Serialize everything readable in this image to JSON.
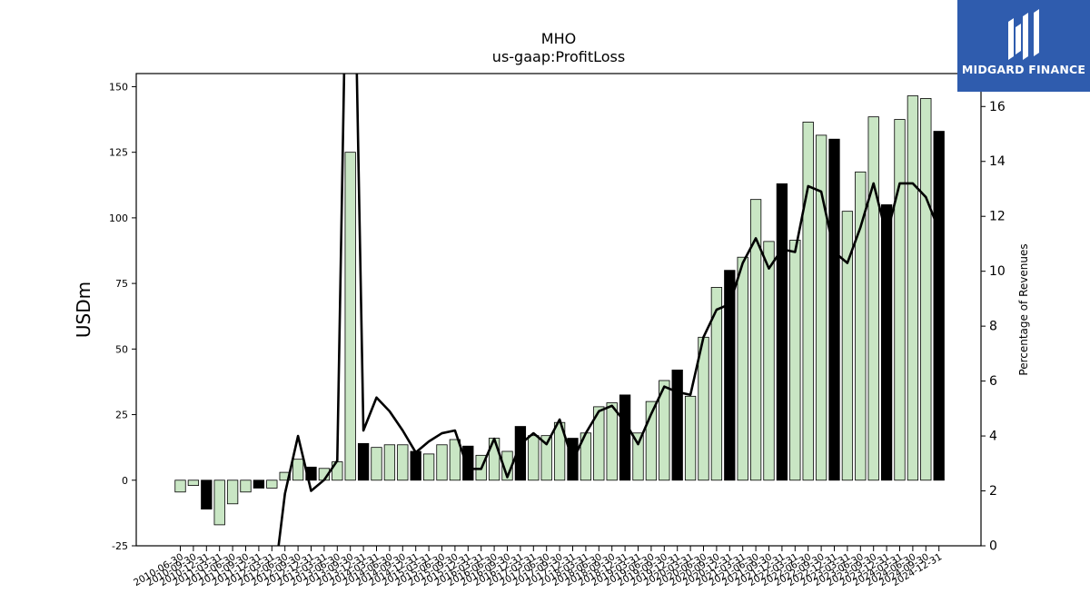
{
  "chart_data": {
    "type": "bar+line",
    "title": "MHO",
    "subtitle": "us-gaap:ProfitLoss",
    "ylabel": "USDm",
    "y2label": "Percentage of Revenues",
    "ylim": [
      -25,
      155
    ],
    "y2lim": [
      0,
      17.2
    ],
    "yticks": [
      -25,
      0,
      25,
      50,
      75,
      100,
      125,
      150
    ],
    "y2ticks": [
      0,
      2,
      4,
      6,
      8,
      10,
      12,
      14,
      16
    ],
    "grid": false,
    "categories": [
      "2010-06-30",
      "2010-09-30",
      "2010-12-31",
      "2011-03-31",
      "2011-06-30",
      "2011-09-30",
      "2011-12-31",
      "2012-03-31",
      "2012-06-30",
      "2012-09-30",
      "2012-12-31",
      "2013-03-31",
      "2013-06-30",
      "2013-09-30",
      "2013-12-31",
      "2014-03-31",
      "2014-06-30",
      "2014-09-30",
      "2014-12-31",
      "2015-03-31",
      "2015-06-30",
      "2015-09-30",
      "2015-12-31",
      "2016-03-31",
      "2016-06-30",
      "2016-09-30",
      "2016-12-31",
      "2017-03-31",
      "2017-06-30",
      "2017-09-30",
      "2017-12-31",
      "2018-03-31",
      "2018-06-30",
      "2018-09-30",
      "2018-12-31",
      "2019-03-31",
      "2019-06-30",
      "2019-09-30",
      "2019-12-31",
      "2020-03-31",
      "2020-06-30",
      "2020-09-30",
      "2020-12-31",
      "2021-03-31",
      "2021-06-30",
      "2021-09-30",
      "2021-12-31",
      "2022-03-31",
      "2022-06-30",
      "2022-09-30",
      "2022-12-31",
      "2023-03-31",
      "2023-06-30",
      "2023-09-30",
      "2023-12-31",
      "2024-03-31",
      "2024-06-30",
      "2024-09-30",
      "2024-12-31"
    ],
    "series": [
      {
        "kind": "bar",
        "values": [
          -4.5,
          -2,
          -11,
          -17,
          -9,
          -4.5,
          -3,
          -3,
          3,
          8,
          5,
          4.5,
          7,
          125,
          14,
          12.5,
          13.5,
          13.5,
          11,
          10,
          13.5,
          15.5,
          13,
          9.5,
          16,
          11,
          20.5,
          17,
          17,
          22,
          16,
          18,
          28,
          29.5,
          32.5,
          18,
          30,
          38,
          42,
          32,
          54.5,
          73.5,
          80,
          85,
          107,
          91,
          113,
          91.5,
          136.5,
          131.5,
          130,
          102.5,
          117.5,
          138.5,
          105,
          137.5,
          146.5,
          145.5,
          133
        ],
        "year_end_color": "#000000",
        "color": "#c9e6c4"
      },
      {
        "kind": "line",
        "axis": "right",
        "color": "#000000",
        "values": [
          null,
          null,
          null,
          null,
          null,
          null,
          null,
          -2,
          1.9,
          4,
          2,
          2.4,
          3.1,
          30,
          4.2,
          5.4,
          4.9,
          4.2,
          3.4,
          3.8,
          4.1,
          4.2,
          2.8,
          2.8,
          3.9,
          2.5,
          3.7,
          4.1,
          3.7,
          4.6,
          3.1,
          4.1,
          4.9,
          5.1,
          4.5,
          3.7,
          4.8,
          5.8,
          5.6,
          5.5,
          7.6,
          8.6,
          8.8,
          10.3,
          11.2,
          10.1,
          10.8,
          10.7,
          13.1,
          12.9,
          10.7,
          10.3,
          11.6,
          13.2,
          11.3,
          13.2,
          13.2,
          12.7,
          11.5
        ]
      }
    ]
  },
  "logo": {
    "text": "MIDGARD FINANCE",
    "icon": "midgard-logo-icon"
  }
}
